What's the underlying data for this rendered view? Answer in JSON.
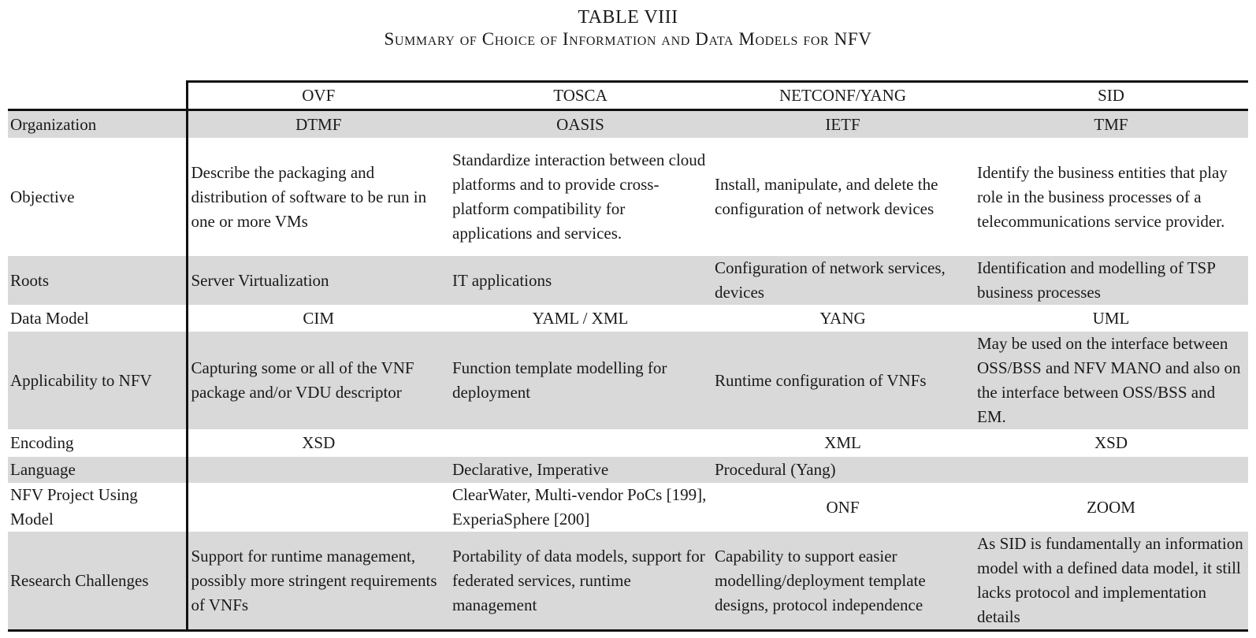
{
  "caption": {
    "number": "TABLE VIII",
    "title": "Summary of Choice of Information and Data Models for NFV"
  },
  "table": {
    "columns": [
      "OVF",
      "TOSCA",
      "NETCONF/YANG",
      "SID"
    ],
    "rows": [
      {
        "label": "Organization",
        "cells": [
          "DTMF",
          "OASIS",
          "IETF",
          "TMF"
        ]
      },
      {
        "label": "Objective",
        "cells": [
          "Describe the packaging and distribution of software to be run in one or more VMs",
          "Standardize interaction between cloud platforms and to provide cross-platform compatibility for applications and services.",
          "Install, manipulate, and delete the configuration of network devices",
          "Identify the business entities that play role in the business processes of a telecommunications service provider."
        ]
      },
      {
        "label": "Roots",
        "cells": [
          "Server Virtualization",
          "IT applications",
          "Configuration of network services, devices",
          "Identification and modelling of TSP business processes"
        ]
      },
      {
        "label": "Data Model",
        "cells": [
          "CIM",
          "YAML / XML",
          "YANG",
          "UML"
        ]
      },
      {
        "label": "Applicability to NFV",
        "cells": [
          "Capturing some or all of the VNF package and/or VDU descriptor",
          "Function template modelling for deployment",
          "Runtime configuration of VNFs",
          "May be used on the interface between OSS/BSS and NFV MANO and also on the interface between OSS/BSS and EM."
        ]
      },
      {
        "label": "Encoding",
        "cells": [
          "XSD",
          "",
          "XML",
          "XSD"
        ]
      },
      {
        "label": "Language",
        "cells": [
          "",
          "Declarative, Imperative",
          "Procedural (Yang)",
          ""
        ]
      },
      {
        "label": "NFV Project Using Model",
        "cells": [
          "",
          "ClearWater, Multi-vendor PoCs [199], ExperiaSphere [200]",
          "ONF",
          "ZOOM"
        ]
      },
      {
        "label": "Research Challenges",
        "cells": [
          "Support for runtime management, possibly more stringent requirements of VNFs",
          "Portability of data models, support for federated services, runtime management",
          "Capability to support easier modelling/deployment template designs, protocol independence",
          "As SID is fundamentally an information model with a defined data model, it still lacks protocol and implementation details"
        ]
      }
    ]
  }
}
